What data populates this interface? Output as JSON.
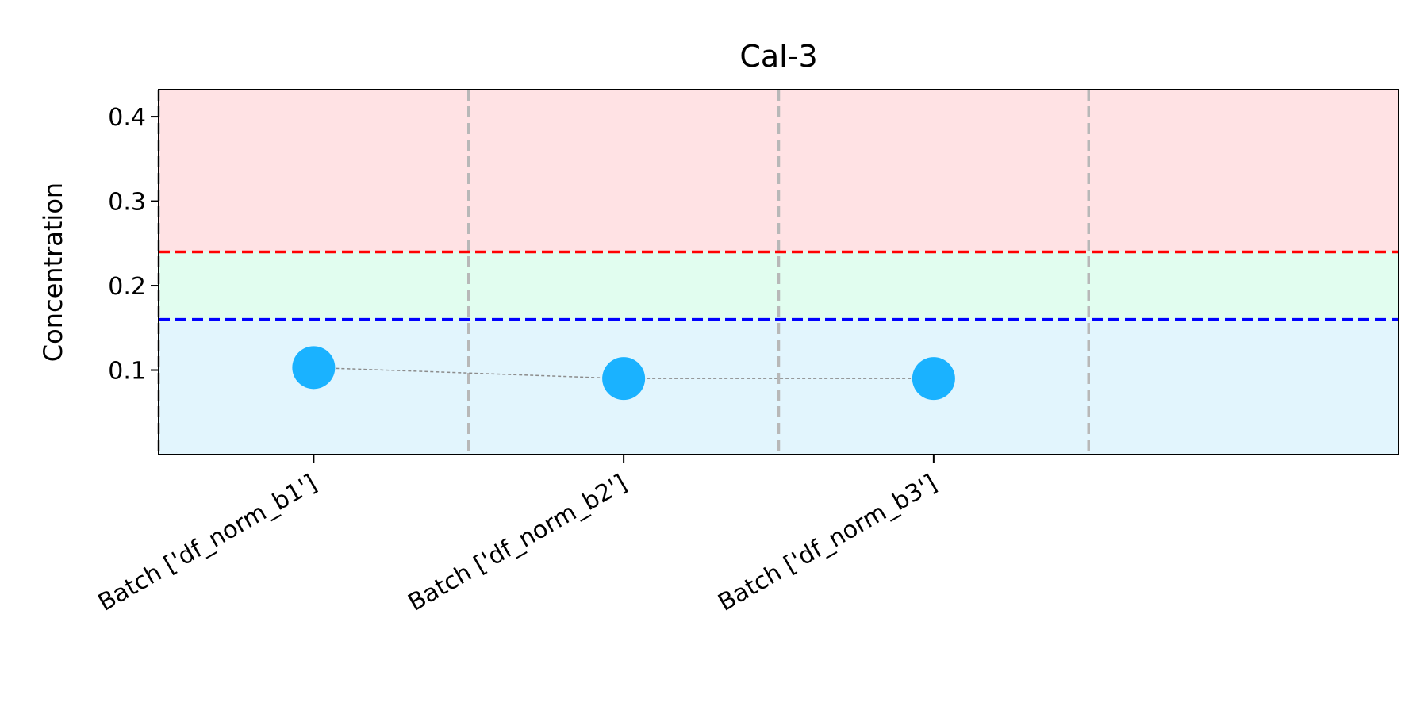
{
  "chart_data": {
    "type": "scatter",
    "title": "Cal-3",
    "xlabel": "",
    "ylabel": "Concentration",
    "categories": [
      "Batch ['df_norm_b1']",
      "Batch ['df_norm_b2']",
      "Batch ['df_norm_b3']"
    ],
    "series": [
      {
        "values": [
          0.103,
          0.09,
          0.09
        ],
        "color": "#1ab2ff",
        "connector_color": "#8c8c8c",
        "connector_style": "dashed"
      }
    ],
    "ylim": [
      0.0,
      0.432
    ],
    "yticks": [
      0.1,
      0.2,
      0.3,
      0.4
    ],
    "ytick_labels": [
      "0.1",
      "0.2",
      "0.3",
      "0.4"
    ],
    "reference_lines": [
      {
        "y": 0.24,
        "color": "#ff0000",
        "style": "dashed"
      },
      {
        "y": 0.16,
        "color": "#0000ff",
        "style": "dashed"
      }
    ],
    "bands": [
      {
        "from": 0.24,
        "to": 0.432,
        "color": "#ffe2e4"
      },
      {
        "from": 0.16,
        "to": 0.24,
        "color": "#e1fdef"
      },
      {
        "from": 0.0,
        "to": 0.16,
        "color": "#e2f5fd"
      }
    ],
    "vertical_separators_color": "#b8b8b8",
    "grid": false,
    "legend": "none"
  }
}
